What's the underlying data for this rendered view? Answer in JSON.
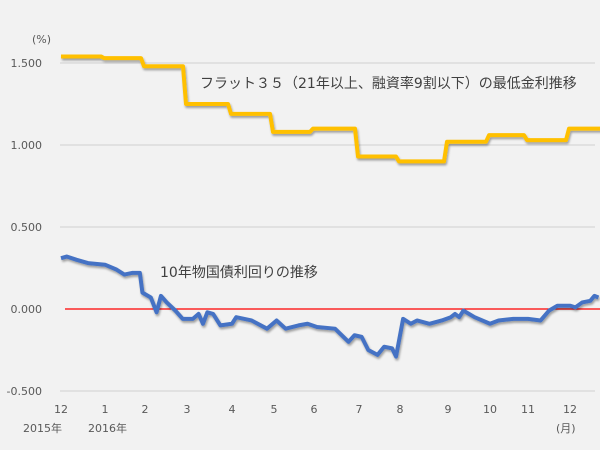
{
  "chart_data": {
    "type": "line",
    "title": "",
    "ylabel": "(%)",
    "xlabel": "(月)",
    "ylim": [
      -0.5,
      1.5
    ],
    "yticks": [
      "1.500",
      "1.000",
      "0.500",
      "0.000",
      "-0.500"
    ],
    "ytick_values": [
      1.5,
      1.0,
      0.5,
      0.0,
      -0.5
    ],
    "xticks": [
      "12",
      "1",
      "2",
      "3",
      "4",
      "5",
      "6",
      "7",
      "8",
      "9",
      "10",
      "11",
      "12"
    ],
    "xtick_years": {
      "first": "2015年",
      "second": "2016年"
    },
    "grid": true,
    "zero_line_color": "#ff0000",
    "series": [
      {
        "name": "フラット３５（21年以上、融資率9割以下）の最低金利推移",
        "color": "#ffc000",
        "step": true,
        "points": [
          [
            "2015-12-01",
            1.54
          ],
          [
            "2016-01-01",
            1.53
          ],
          [
            "2016-02-01",
            1.48
          ],
          [
            "2016-03-01",
            1.25
          ],
          [
            "2016-04-01",
            1.19
          ],
          [
            "2016-05-01",
            1.08
          ],
          [
            "2016-06-01",
            1.1
          ],
          [
            "2016-07-01",
            0.93
          ],
          [
            "2016-08-01",
            0.9
          ],
          [
            "2016-09-01",
            1.02
          ],
          [
            "2016-10-01",
            1.06
          ],
          [
            "2016-11-01",
            1.03
          ],
          [
            "2016-12-01",
            1.1
          ],
          [
            "2016-12-22",
            1.1
          ]
        ]
      },
      {
        "name": "10年物国債利回りの推移",
        "color": "#4472c4",
        "step": false,
        "points": [
          [
            "2015-12-01",
            0.31
          ],
          [
            "2015-12-05",
            0.32
          ],
          [
            "2015-12-12",
            0.3
          ],
          [
            "2015-12-20",
            0.28
          ],
          [
            "2016-01-01",
            0.27
          ],
          [
            "2016-01-10",
            0.24
          ],
          [
            "2016-01-16",
            0.21
          ],
          [
            "2016-01-22",
            0.22
          ],
          [
            "2016-01-28",
            0.22
          ],
          [
            "2016-01-30",
            0.1
          ],
          [
            "2016-02-05",
            0.07
          ],
          [
            "2016-02-09",
            -0.02
          ],
          [
            "2016-02-12",
            0.08
          ],
          [
            "2016-02-16",
            0.04
          ],
          [
            "2016-02-22",
            -0.01
          ],
          [
            "2016-02-27",
            -0.06
          ],
          [
            "2016-03-05",
            -0.06
          ],
          [
            "2016-03-09",
            -0.03
          ],
          [
            "2016-03-12",
            -0.09
          ],
          [
            "2016-03-15",
            -0.02
          ],
          [
            "2016-03-19",
            -0.03
          ],
          [
            "2016-03-24",
            -0.1
          ],
          [
            "2016-04-01",
            -0.09
          ],
          [
            "2016-04-04",
            -0.05
          ],
          [
            "2016-04-15",
            -0.07
          ],
          [
            "2016-04-26",
            -0.12
          ],
          [
            "2016-05-03",
            -0.07
          ],
          [
            "2016-05-10",
            -0.12
          ],
          [
            "2016-05-20",
            -0.1
          ],
          [
            "2016-05-27",
            -0.09
          ],
          [
            "2016-06-03",
            -0.11
          ],
          [
            "2016-06-15",
            -0.12
          ],
          [
            "2016-06-24",
            -0.2
          ],
          [
            "2016-06-28",
            -0.16
          ],
          [
            "2016-07-03",
            -0.17
          ],
          [
            "2016-07-08",
            -0.25
          ],
          [
            "2016-07-15",
            -0.28
          ],
          [
            "2016-07-20",
            -0.23
          ],
          [
            "2016-07-26",
            -0.24
          ],
          [
            "2016-07-29",
            -0.29
          ],
          [
            "2016-08-03",
            -0.06
          ],
          [
            "2016-08-08",
            -0.09
          ],
          [
            "2016-08-12",
            -0.07
          ],
          [
            "2016-08-20",
            -0.09
          ],
          [
            "2016-08-28",
            -0.07
          ],
          [
            "2016-09-03",
            -0.05
          ],
          [
            "2016-09-06",
            -0.03
          ],
          [
            "2016-09-09",
            -0.05
          ],
          [
            "2016-09-12",
            -0.01
          ],
          [
            "2016-09-20",
            -0.05
          ],
          [
            "2016-10-01",
            -0.09
          ],
          [
            "2016-10-08",
            -0.07
          ],
          [
            "2016-10-20",
            -0.06
          ],
          [
            "2016-11-01",
            -0.06
          ],
          [
            "2016-11-10",
            -0.07
          ],
          [
            "2016-11-16",
            -0.01
          ],
          [
            "2016-11-22",
            0.02
          ],
          [
            "2016-12-01",
            0.02
          ],
          [
            "2016-12-05",
            0.01
          ],
          [
            "2016-12-10",
            0.04
          ],
          [
            "2016-12-16",
            0.05
          ],
          [
            "2016-12-19",
            0.08
          ],
          [
            "2016-12-22",
            0.07
          ]
        ]
      }
    ]
  }
}
